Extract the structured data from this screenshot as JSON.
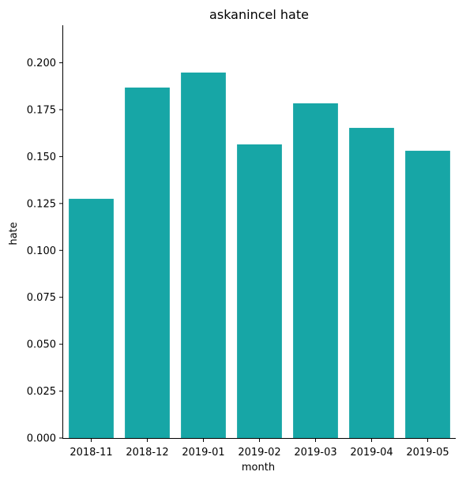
{
  "chart_data": {
    "type": "bar",
    "title": "askanincel hate",
    "xlabel": "month",
    "ylabel": "hate",
    "categories": [
      "2018-11",
      "2018-12",
      "2019-01",
      "2019-02",
      "2019-03",
      "2019-04",
      "2019-05"
    ],
    "values": [
      0.1275,
      0.1868,
      0.1948,
      0.1565,
      0.1784,
      0.1653,
      0.1531
    ],
    "ylim": [
      0,
      0.22
    ],
    "yticks": [
      "0.000",
      "0.025",
      "0.050",
      "0.075",
      "0.100",
      "0.125",
      "0.150",
      "0.175",
      "0.200"
    ],
    "ytick_values": [
      0,
      0.025,
      0.05,
      0.075,
      0.1,
      0.125,
      0.15,
      0.175,
      0.2
    ],
    "bar_color": "#17a6a6",
    "grid": false,
    "legend": false
  }
}
